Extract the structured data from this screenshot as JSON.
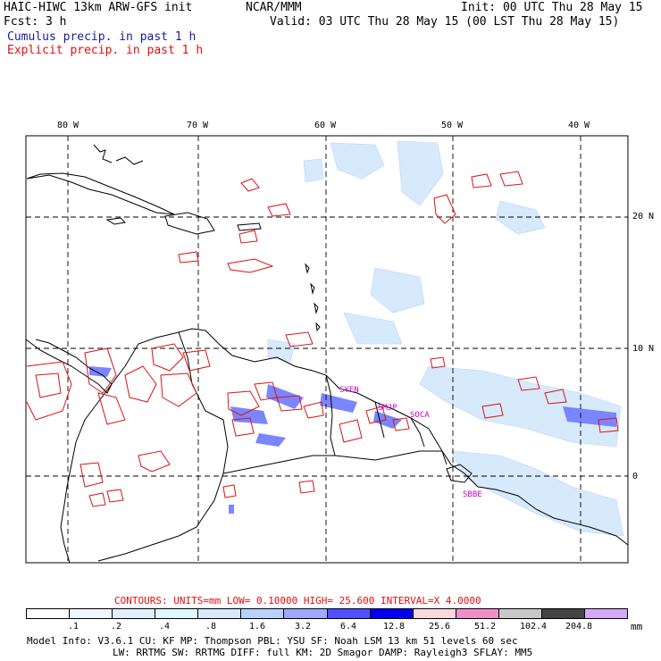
{
  "header": {
    "model_title": "HAIC-HIWC 13km ARW-GFS init",
    "org": "NCAR/MMM",
    "init": "Init: 00 UTC Thu 28 May 15",
    "fcst": "Fcst:    3 h",
    "valid": "Valid: 03 UTC Thu 28 May 15 (00 LST Thu 28 May 15)",
    "cumulus_label": "Cumulus precip. in past 1 h",
    "explicit_label": "Explicit precip. in past 1 h"
  },
  "map": {
    "lon_ticks": [
      "80 W",
      "70 W",
      "60 W",
      "50 W",
      "40 W"
    ],
    "lat_ticks": [
      "20 N",
      "10 N",
      "0"
    ],
    "stations": [
      "SYEN",
      "SMJP",
      "SOCA",
      "SBBE"
    ]
  },
  "contours": {
    "text": "CONTOURS:  UNITS=mm  LOW= 0.10000     HIGH=  25.600     INTERVAL=X  4.0000"
  },
  "colorbar": {
    "labels": [
      ".1",
      ".2",
      ".4",
      ".8",
      "1.6",
      "3.2",
      "6.4",
      "12.8",
      "25.6",
      "51.2",
      "102.4",
      "204.8"
    ],
    "colors": [
      "#ffffff",
      "#eef6ff",
      "#e0f0fa",
      "#ddf8fa",
      "#d6eafc",
      "#b8d2ff",
      "#9ea8ff",
      "#5050ff",
      "#0000ee",
      "#fcd7dd",
      "#f090c8",
      "#c8c8c8",
      "#444444",
      "#d8a8f8"
    ],
    "unit": "mm"
  },
  "footer": {
    "line1": "Model Info: V3.6.1     CU: KF      MP: Thompson     PBL: YSU       SF: Noah LSM     13 km   51 levels   60 sec",
    "line2": "LW: RRTMG    SW: RRTMG  DIFF: full    KM: 2D Smagor DAMP: Rayleigh3    SFLAY: MM5"
  }
}
